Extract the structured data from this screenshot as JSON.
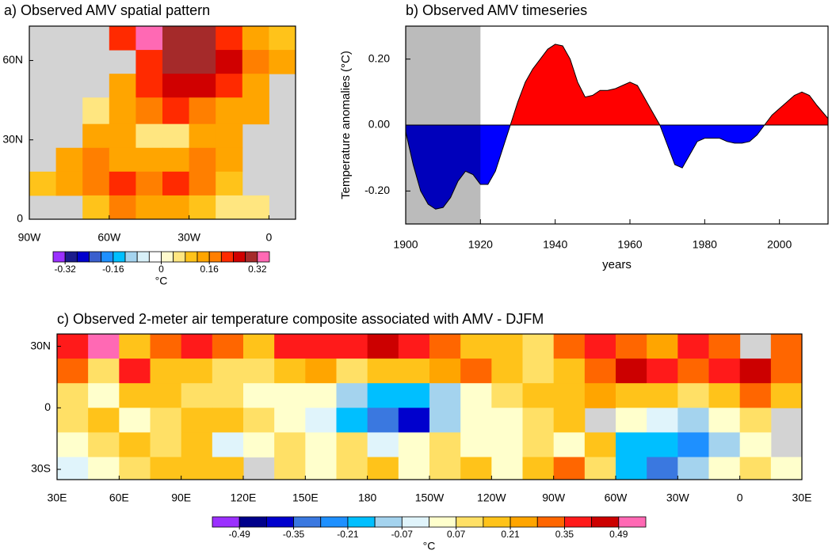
{
  "chart_data": [
    {
      "type": "map",
      "title": "a) Observed AMV spatial pattern",
      "x": [
        -90,
        -80,
        -70,
        -60,
        -50,
        -40,
        -30,
        -20,
        -10,
        0,
        10
      ],
      "y": [
        73,
        64,
        55,
        46,
        36,
        27,
        18,
        9,
        0
      ],
      "values": [
        [
          null,
          null,
          null,
          0.2,
          0.34,
          0.3,
          0.28,
          0.2,
          0.15,
          0.1
        ],
        [
          null,
          null,
          null,
          null,
          0.22,
          0.3,
          0.3,
          0.26,
          0.18,
          0.12
        ],
        [
          null,
          null,
          null,
          0.14,
          0.2,
          0.24,
          0.26,
          0.2,
          0.14,
          null
        ],
        [
          null,
          null,
          0.06,
          0.14,
          0.16,
          0.2,
          0.16,
          0.14,
          0.12,
          null
        ],
        [
          null,
          null,
          0.12,
          0.14,
          0.06,
          0.04,
          0.12,
          0.14,
          null,
          null
        ],
        [
          null,
          0.12,
          0.16,
          0.14,
          0.12,
          0.14,
          0.18,
          0.12,
          null,
          null
        ],
        [
          0.1,
          0.14,
          0.18,
          0.2,
          0.18,
          0.2,
          0.16,
          0.1,
          null,
          null
        ],
        [
          null,
          null,
          0.1,
          0.16,
          0.14,
          0.12,
          0.08,
          0.04,
          0.06,
          null
        ]
      ],
      "xlim": [
        -90,
        10
      ],
      "ylim": [
        0,
        73
      ],
      "xticks": [
        {
          "value": -90,
          "label": "90W"
        },
        {
          "value": -60,
          "label": "60W"
        },
        {
          "value": -30,
          "label": "30W"
        },
        0
      ],
      "yticks": [
        0,
        {
          "value": 30,
          "label": "30N"
        },
        {
          "value": 60,
          "label": "60N"
        }
      ],
      "land_color": "#d3d3d3",
      "levels": [
        -0.32,
        -0.28,
        -0.24,
        -0.2,
        -0.16,
        -0.12,
        -0.08,
        -0.04,
        0,
        0.04,
        0.08,
        0.12,
        0.16,
        0.2,
        0.24,
        0.28,
        0.32
      ],
      "colors": [
        "#9b30ff",
        "#1c1c8c",
        "#0000cd",
        "#3a5fcd",
        "#1e90ff",
        "#00bfff",
        "#a4d3ee",
        "#d8f0f8",
        "#ffffff",
        "#fffacd",
        "#ffe680",
        "#ffc31a",
        "#ffa500",
        "#ff7f00",
        "#ff2a00",
        "#d00000",
        "#a52a2a",
        "#ff69b4"
      ],
      "colorbar_ticks": [
        -0.32,
        -0.16,
        0,
        0.16,
        0.32
      ],
      "colorbar_label": "°C"
    },
    {
      "type": "area",
      "title": "b) Observed AMV timeseries",
      "x_label": "years",
      "y_label": "Temperature anomalies (°C)",
      "x": [
        1900,
        1902,
        1904,
        1906,
        1908,
        1910,
        1912,
        1914,
        1916,
        1918,
        1920,
        1922,
        1924,
        1926,
        1928,
        1930,
        1932,
        1934,
        1936,
        1938,
        1940,
        1942,
        1944,
        1946,
        1948,
        1950,
        1952,
        1954,
        1956,
        1958,
        1960,
        1962,
        1964,
        1966,
        1968,
        1970,
        1972,
        1974,
        1976,
        1978,
        1980,
        1982,
        1984,
        1986,
        1988,
        1990,
        1992,
        1994,
        1996,
        1998,
        2000,
        2002,
        2004,
        2006,
        2008,
        2010,
        2013
      ],
      "values": [
        -0.02,
        -0.12,
        -0.2,
        -0.24,
        -0.255,
        -0.25,
        -0.22,
        -0.17,
        -0.14,
        -0.15,
        -0.18,
        -0.18,
        -0.14,
        -0.07,
        0.0,
        0.07,
        0.13,
        0.17,
        0.2,
        0.23,
        0.245,
        0.24,
        0.2,
        0.13,
        0.085,
        0.09,
        0.105,
        0.105,
        0.11,
        0.12,
        0.13,
        0.12,
        0.08,
        0.04,
        0.0,
        -0.06,
        -0.12,
        -0.13,
        -0.09,
        -0.05,
        -0.04,
        -0.04,
        -0.04,
        -0.05,
        -0.055,
        -0.055,
        -0.05,
        -0.03,
        0.0,
        0.03,
        0.05,
        0.07,
        0.09,
        0.1,
        0.09,
        0.06,
        0.02
      ],
      "color_above": "#ff0000",
      "color_below": "#0000ff",
      "shade": [
        1900,
        1920
      ],
      "shade_color": "#bbbbbb",
      "xlim": [
        1900,
        2013
      ],
      "ylim": [
        -0.3,
        0.3
      ],
      "xticks": [
        1900,
        1920,
        1940,
        1960,
        1980,
        2000
      ],
      "yticks": [
        {
          "value": -0.2,
          "label": "-0.20"
        },
        {
          "value": 0,
          "label": "0.00"
        },
        {
          "value": 0.2,
          "label": "0.20"
        }
      ]
    },
    {
      "type": "map",
      "title": "c) Observed 2-meter air temperature composite associated with AMV - DJFM",
      "x": [
        30,
        45,
        60,
        75,
        90,
        105,
        120,
        135,
        150,
        165,
        180,
        195,
        210,
        225,
        240,
        255,
        270,
        285,
        300,
        315,
        330,
        345,
        360,
        375,
        390
      ],
      "y": [
        36,
        24,
        12,
        0,
        -12,
        -24,
        -35
      ],
      "values": [
        [
          0.4,
          0.5,
          0.2,
          0.3,
          0.35,
          0.3,
          0.2,
          0.35,
          0.4,
          0.4,
          0.45,
          0.38,
          0.3,
          0.15,
          0.2,
          0.1,
          0.3,
          0.35,
          0.3,
          0.25,
          0.35,
          0.3,
          null,
          0.3
        ],
        [
          0.3,
          0.1,
          0.4,
          0.2,
          0.15,
          0.1,
          0.1,
          0.2,
          0.25,
          0.1,
          0.15,
          0.2,
          0.25,
          0.3,
          0.2,
          0.1,
          0.2,
          0.3,
          0.45,
          0.4,
          0.3,
          0.35,
          0.45,
          0.3
        ],
        [
          0.1,
          0.05,
          0.15,
          0.2,
          0.1,
          0.1,
          0.05,
          0.0,
          0.0,
          -0.1,
          -0.15,
          -0.2,
          -0.1,
          0.05,
          0.1,
          0.15,
          0.2,
          0.25,
          0.2,
          0.15,
          0.1,
          0.2,
          0.3,
          0.2
        ],
        [
          0.1,
          0.15,
          0.05,
          0.1,
          0.2,
          0.15,
          0.1,
          0.05,
          -0.05,
          -0.15,
          -0.3,
          -0.4,
          -0.1,
          0.0,
          0.05,
          0.1,
          0.15,
          null,
          0.05,
          -0.05,
          -0.1,
          0.0,
          0.1,
          null
        ],
        [
          0.05,
          0.1,
          0.15,
          0.1,
          0.2,
          -0.05,
          0.05,
          0.1,
          0.0,
          0.1,
          -0.05,
          0.0,
          0.1,
          0.05,
          0.0,
          0.1,
          0.05,
          0.15,
          -0.15,
          -0.2,
          -0.25,
          -0.1,
          0.05,
          null
        ],
        [
          -0.05,
          0.0,
          0.1,
          0.15,
          0.2,
          0.15,
          null,
          0.1,
          0.05,
          0.1,
          0.15,
          0.05,
          0.1,
          0.15,
          0.05,
          0.2,
          0.3,
          0.1,
          -0.15,
          -0.3,
          -0.1,
          0.0,
          0.1,
          0.05
        ]
      ],
      "xlim": [
        30,
        390
      ],
      "ylim": [
        -35,
        36
      ],
      "xticks": [
        {
          "value": 30,
          "label": "30E"
        },
        {
          "value": 60,
          "label": "60E"
        },
        {
          "value": 90,
          "label": "90E"
        },
        {
          "value": 120,
          "label": "120E"
        },
        {
          "value": 150,
          "label": "150E"
        },
        180,
        {
          "value": 210,
          "label": "150W"
        },
        {
          "value": 240,
          "label": "120W"
        },
        {
          "value": 270,
          "label": "90W"
        },
        {
          "value": 300,
          "label": "60W"
        },
        {
          "value": 330,
          "label": "30W"
        },
        {
          "value": 360,
          "label": "0"
        },
        {
          "value": 390,
          "label": "30E"
        }
      ],
      "yticks": [
        {
          "value": 30,
          "label": "30N"
        },
        0,
        {
          "value": -30,
          "label": "30S"
        }
      ],
      "land_color": "#d3d3d3",
      "levels": [
        -0.49,
        -0.42,
        -0.35,
        -0.28,
        -0.21,
        -0.14,
        -0.07,
        0,
        0.07,
        0.14,
        0.21,
        0.28,
        0.35,
        0.42,
        0.49
      ],
      "colors": [
        "#9b30ff",
        "#00008b",
        "#0000cd",
        "#3a78e0",
        "#1e90ff",
        "#00bfff",
        "#a4d3ee",
        "#e0f4fb",
        "#ffffcc",
        "#ffe066",
        "#ffc31a",
        "#ffa500",
        "#ff6600",
        "#ff1a1a",
        "#cc0000",
        "#ff69b4"
      ],
      "colorbar_ticks": [
        -0.49,
        -0.35,
        -0.21,
        -0.07,
        0.07,
        0.21,
        0.35,
        0.49
      ],
      "colorbar_label": "°C"
    }
  ]
}
